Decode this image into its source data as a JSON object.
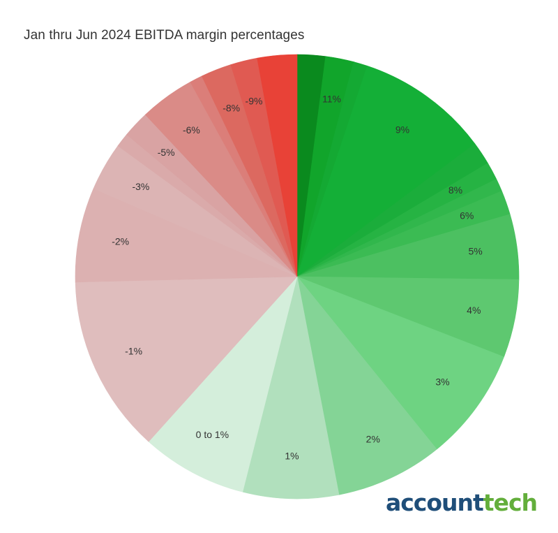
{
  "chart_data": {
    "type": "pie",
    "title": "Jan thru Jun 2024 EBITDA margin percentages",
    "start": "12 o'clock, clockwise",
    "slices": [
      {
        "label": "",
        "value": 2.2,
        "color": "#0a8a1e"
      },
      {
        "label": "11%",
        "value": 2.2,
        "color": "#11a52b"
      },
      {
        "label": "",
        "value": 1.1,
        "color": "#14a933"
      },
      {
        "label": "9%",
        "value": 10.4,
        "color": "#14af37"
      },
      {
        "label": "",
        "value": 1.8,
        "color": "#1bad3b"
      },
      {
        "label": "8%",
        "value": 1.4,
        "color": "#26b343"
      },
      {
        "label": "",
        "value": 1.0,
        "color": "#31b74c"
      },
      {
        "label": "6%",
        "value": 1.9,
        "color": "#3bbb53"
      },
      {
        "label": "5%",
        "value": 5.1,
        "color": "#4cc061"
      },
      {
        "label": "4%",
        "value": 6.1,
        "color": "#5ec870"
      },
      {
        "label": "3%",
        "value": 8.9,
        "color": "#6ed382"
      },
      {
        "label": "2%",
        "value": 8.4,
        "color": "#84d496"
      },
      {
        "label": "1%",
        "value": 7.5,
        "color": "#b1e0bd"
      },
      {
        "label": "0 to 1%",
        "value": 8.3,
        "color": "#d4eedb"
      },
      {
        "label": "-1%",
        "value": 13.9,
        "color": "#dfbdbd"
      },
      {
        "label": "-2%",
        "value": 7.4,
        "color": "#dcb1b1"
      },
      {
        "label": "-3%",
        "value": 3.8,
        "color": "#dcb4b4"
      },
      {
        "label": "",
        "value": 1.1,
        "color": "#daaaaa"
      },
      {
        "label": "-5%",
        "value": 2.1,
        "color": "#d9a3a3"
      },
      {
        "label": "-6%",
        "value": 4.3,
        "color": "#da8b87"
      },
      {
        "label": "",
        "value": 1.0,
        "color": "#db7e79"
      },
      {
        "label": "-8%",
        "value": 2.4,
        "color": "#dc6960"
      },
      {
        "label": "-9%",
        "value": 2.1,
        "color": "#e05a52"
      },
      {
        "label": "",
        "value": 3.1,
        "color": "#e84237"
      }
    ]
  },
  "logo": {
    "part1": "account",
    "part2": "tech"
  }
}
